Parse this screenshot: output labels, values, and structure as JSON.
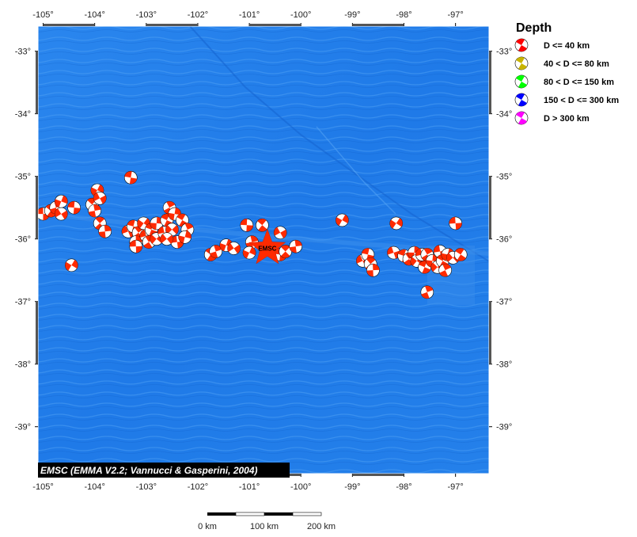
{
  "map": {
    "lon_ticks": [
      "-105°",
      "-104°",
      "-103°",
      "-102°",
      "-101°",
      "-100°",
      "-99°",
      "-98°",
      "-97°"
    ],
    "lat_ticks": [
      "-33°",
      "-34°",
      "-35°",
      "-36°",
      "-37°",
      "-38°",
      "-39°"
    ],
    "credit": "EMSC (EMMA V2.2; Vannucci & Gasperini, 2004)",
    "epicenter_label": "EMSC",
    "epicenter": {
      "lon": -100.65,
      "lat": -36.15
    },
    "colors": {
      "ocean": "#1e78e6",
      "ocean_light": "#3c94f0",
      "mechanism_shallow": "#ff2a00",
      "epicenter": "#ff2a00"
    },
    "mechanisms": [
      {
        "lon": -105.0,
        "lat": -35.6
      },
      {
        "lon": -104.85,
        "lat": -35.55
      },
      {
        "lon": -104.75,
        "lat": -35.5
      },
      {
        "lon": -104.65,
        "lat": -35.4
      },
      {
        "lon": -104.65,
        "lat": -35.6
      },
      {
        "lon": -104.4,
        "lat": -35.5
      },
      {
        "lon": -104.05,
        "lat": -35.45
      },
      {
        "lon": -104.0,
        "lat": -35.55
      },
      {
        "lon": -103.95,
        "lat": -35.22
      },
      {
        "lon": -103.9,
        "lat": -35.35
      },
      {
        "lon": -103.3,
        "lat": -35.02
      },
      {
        "lon": -103.9,
        "lat": -35.75
      },
      {
        "lon": -103.8,
        "lat": -35.88
      },
      {
        "lon": -104.45,
        "lat": -36.42
      },
      {
        "lon": -103.35,
        "lat": -35.88
      },
      {
        "lon": -103.25,
        "lat": -35.8
      },
      {
        "lon": -103.15,
        "lat": -35.9
      },
      {
        "lon": -103.2,
        "lat": -36.05
      },
      {
        "lon": -103.05,
        "lat": -35.75
      },
      {
        "lon": -103.0,
        "lat": -35.95
      },
      {
        "lon": -102.9,
        "lat": -35.85
      },
      {
        "lon": -102.95,
        "lat": -36.05
      },
      {
        "lon": -102.8,
        "lat": -35.75
      },
      {
        "lon": -102.8,
        "lat": -36.0
      },
      {
        "lon": -102.65,
        "lat": -35.9
      },
      {
        "lon": -102.6,
        "lat": -35.7
      },
      {
        "lon": -102.55,
        "lat": -35.5
      },
      {
        "lon": -102.45,
        "lat": -35.6
      },
      {
        "lon": -102.5,
        "lat": -35.85
      },
      {
        "lon": -102.4,
        "lat": -36.05
      },
      {
        "lon": -102.3,
        "lat": -35.7
      },
      {
        "lon": -102.2,
        "lat": -35.85
      },
      {
        "lon": -102.25,
        "lat": -35.97
      },
      {
        "lon": -102.6,
        "lat": -36.0
      },
      {
        "lon": -103.2,
        "lat": -36.12
      },
      {
        "lon": -101.75,
        "lat": -36.25
      },
      {
        "lon": -101.65,
        "lat": -36.2
      },
      {
        "lon": -101.45,
        "lat": -36.1
      },
      {
        "lon": -101.3,
        "lat": -36.15
      },
      {
        "lon": -101.05,
        "lat": -35.78
      },
      {
        "lon": -100.75,
        "lat": -35.78
      },
      {
        "lon": -100.95,
        "lat": -36.05
      },
      {
        "lon": -101.0,
        "lat": -36.22
      },
      {
        "lon": -100.4,
        "lat": -35.9
      },
      {
        "lon": -100.4,
        "lat": -36.25
      },
      {
        "lon": -100.3,
        "lat": -36.2
      },
      {
        "lon": -100.1,
        "lat": -36.12
      },
      {
        "lon": -99.2,
        "lat": -35.7
      },
      {
        "lon": -98.8,
        "lat": -36.35
      },
      {
        "lon": -98.7,
        "lat": -36.25
      },
      {
        "lon": -98.65,
        "lat": -36.4
      },
      {
        "lon": -98.6,
        "lat": -36.5
      },
      {
        "lon": -98.15,
        "lat": -35.75
      },
      {
        "lon": -98.2,
        "lat": -36.22
      },
      {
        "lon": -98.0,
        "lat": -36.27
      },
      {
        "lon": -97.9,
        "lat": -36.32
      },
      {
        "lon": -97.8,
        "lat": -36.22
      },
      {
        "lon": -97.75,
        "lat": -36.35
      },
      {
        "lon": -97.65,
        "lat": -36.25
      },
      {
        "lon": -97.6,
        "lat": -36.45
      },
      {
        "lon": -97.55,
        "lat": -36.25
      },
      {
        "lon": -97.45,
        "lat": -36.35
      },
      {
        "lon": -97.35,
        "lat": -36.45
      },
      {
        "lon": -97.3,
        "lat": -36.2
      },
      {
        "lon": -97.25,
        "lat": -36.35
      },
      {
        "lon": -97.2,
        "lat": -36.5
      },
      {
        "lon": -97.15,
        "lat": -36.25
      },
      {
        "lon": -97.05,
        "lat": -36.3
      },
      {
        "lon": -97.0,
        "lat": -35.75
      },
      {
        "lon": -96.9,
        "lat": -36.25
      },
      {
        "lon": -97.55,
        "lat": -36.85
      }
    ]
  },
  "legend": {
    "title": "Depth",
    "items": [
      {
        "label": "D <= 40 km",
        "color": "#ff0000"
      },
      {
        "label": "40 < D <= 80 km",
        "color": "#c8b400"
      },
      {
        "label": "80 < D <= 150 km",
        "color": "#00ff00"
      },
      {
        "label": "150 < D <= 300 km",
        "color": "#0000ff"
      },
      {
        "label": "D > 300 km",
        "color": "#ff00ff"
      }
    ]
  },
  "scale_bar": {
    "labels": [
      "0 km",
      "100 km",
      "200 km"
    ]
  }
}
